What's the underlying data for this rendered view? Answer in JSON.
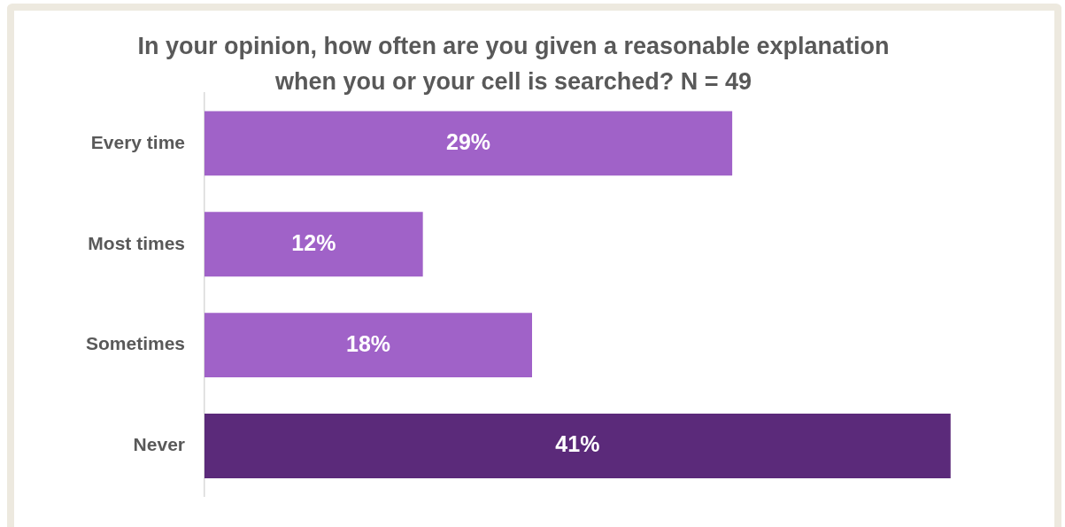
{
  "chart_data": {
    "type": "bar",
    "orientation": "horizontal",
    "title": "In your opinion, how often are you given a reasonable explanation when you or your cell is searched? N = 49",
    "categories": [
      "Every time",
      "Most times",
      "Sometimes",
      "Never"
    ],
    "values": [
      29,
      12,
      18,
      41
    ],
    "colors": [
      "#a062c8",
      "#a062c8",
      "#a062c8",
      "#5b2a7a"
    ],
    "value_labels": [
      "29%",
      "12%",
      "18%",
      "41%"
    ],
    "tick_labels": "y"
  }
}
